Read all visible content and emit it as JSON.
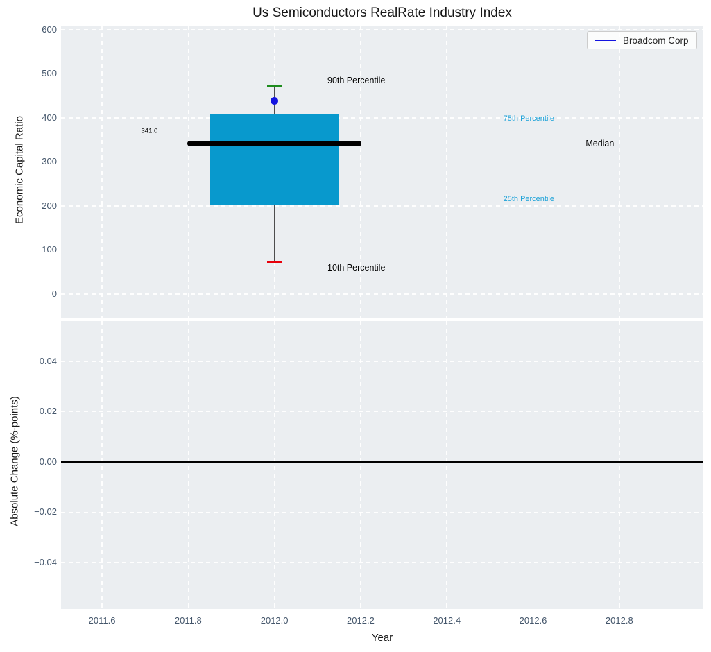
{
  "figure": {
    "title": "Us Semiconductors RealRate Industry Index",
    "background_color": "#ffffff",
    "plot_background_color": "#ebeef1",
    "grid_color": "#ffffff",
    "tick_color": "#44566b"
  },
  "legend": {
    "label": "Broadcom Corp",
    "line_color": "#1414e0",
    "position": "upper right"
  },
  "chart_data": [
    {
      "type": "boxplot",
      "title": "Us Semiconductors RealRate Industry Index",
      "xlabel": "",
      "ylabel": "Economic Capital Ratio",
      "xlim": [
        2011.505,
        2012.995
      ],
      "ylim": [
        -55,
        609
      ],
      "xticks": [
        2011.6,
        2011.8,
        2012.0,
        2012.2,
        2012.4,
        2012.6,
        2012.8
      ],
      "xtick_labels": [
        "2011.6",
        "2011.8",
        "2012.0",
        "2012.2",
        "2012.4",
        "2012.6",
        "2012.8"
      ],
      "yticks": [
        0,
        100,
        200,
        300,
        400,
        500,
        600
      ],
      "ytick_labels": [
        "0",
        "100",
        "200",
        "300",
        "400",
        "500",
        "600"
      ],
      "grid": true,
      "show_x_tick_labels": false,
      "box": {
        "x": 2012.0,
        "percentile_10": 73,
        "percentile_25": 203,
        "median": 341,
        "percentile_75": 408,
        "percentile_90": 472,
        "median_value_label": "341.0",
        "box_half_width": 0.149,
        "median_line_half_width": 0.202,
        "cap_half_width": 0.017,
        "box_color": "#0899cd",
        "median_color": "#000000",
        "whisker_color": "#4d4d4d",
        "cap_high_color": "#1e8c1e",
        "cap_low_color": "#e8000b"
      },
      "point": {
        "name": "Broadcom Corp",
        "x": 2012.0,
        "y": 438,
        "color": "#1414e0"
      },
      "annotations": [
        {
          "text": "90th Percentile",
          "x": 2012.19,
          "y": 484,
          "color": "#000000",
          "size": 12.5
        },
        {
          "text": "10th Percentile",
          "x": 2012.19,
          "y": 60,
          "color": "#000000",
          "size": 12.5
        },
        {
          "text": "75th Percentile",
          "x": 2012.59,
          "y": 398,
          "color": "#1da2d8",
          "size": 11
        },
        {
          "text": "25th Percentile",
          "x": 2012.59,
          "y": 215,
          "color": "#1da2d8",
          "size": 11
        },
        {
          "text": "Median",
          "x": 2012.755,
          "y": 341,
          "color": "#000000",
          "size": 12.5
        },
        {
          "text": "341.0",
          "x": 2011.71,
          "y": 370,
          "color": "#000000",
          "size": 9.5
        }
      ]
    },
    {
      "type": "line",
      "xlabel": "Year",
      "ylabel": "Absolute Change (%-points)",
      "xlim": [
        2011.505,
        2012.995
      ],
      "ylim": [
        -0.0585,
        0.056
      ],
      "xticks": [
        2011.6,
        2011.8,
        2012.0,
        2012.2,
        2012.4,
        2012.6,
        2012.8
      ],
      "xtick_labels": [
        "2011.6",
        "2011.8",
        "2012.0",
        "2012.2",
        "2012.4",
        "2012.6",
        "2012.8"
      ],
      "yticks": [
        0.04,
        0.02,
        0.0,
        -0.02,
        -0.04
      ],
      "ytick_labels": [
        "0.04",
        "0.02",
        "0.00",
        "−0.02",
        "−0.04"
      ],
      "grid": true,
      "show_x_tick_labels": true,
      "zero_line": 0.0,
      "series": []
    }
  ]
}
